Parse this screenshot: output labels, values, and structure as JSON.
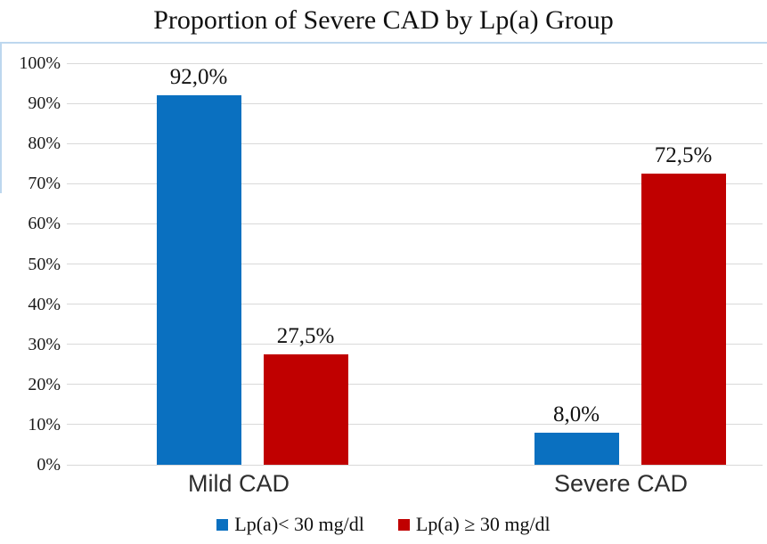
{
  "title": "Proportion of Severe CAD by Lp(a) Group",
  "chart_data": {
    "type": "bar",
    "title": "Proportion of Severe CAD by Lp(a) Group",
    "categories": [
      "Mild CAD",
      "Severe CAD"
    ],
    "series": [
      {
        "name": "Lp(a)< 30 mg/dl",
        "color": "#0a70c0",
        "values": [
          92.0,
          8.0
        ],
        "labels": [
          "92,0%",
          "8,0%"
        ]
      },
      {
        "name": "Lp(a) ≥ 30 mg/dl",
        "color": "#c00000",
        "values": [
          27.5,
          72.5
        ],
        "labels": [
          "27,5%",
          "72,5%"
        ]
      }
    ],
    "xlabel": "",
    "ylabel": "",
    "ylim": [
      0,
      100
    ],
    "ytick_step": 10,
    "ytick_labels": [
      "0%",
      "10%",
      "20%",
      "30%",
      "40%",
      "50%",
      "60%",
      "70%",
      "80%",
      "90%",
      "100%"
    ],
    "grid": true,
    "legend_position": "bottom"
  },
  "colors": {
    "bar_blue": "#0a70c0",
    "bar_red": "#c00000",
    "gridline": "#d9d9d9",
    "frame": "#bdd7ee",
    "title_text": "#111111",
    "category_text": "#2e2e2e"
  }
}
